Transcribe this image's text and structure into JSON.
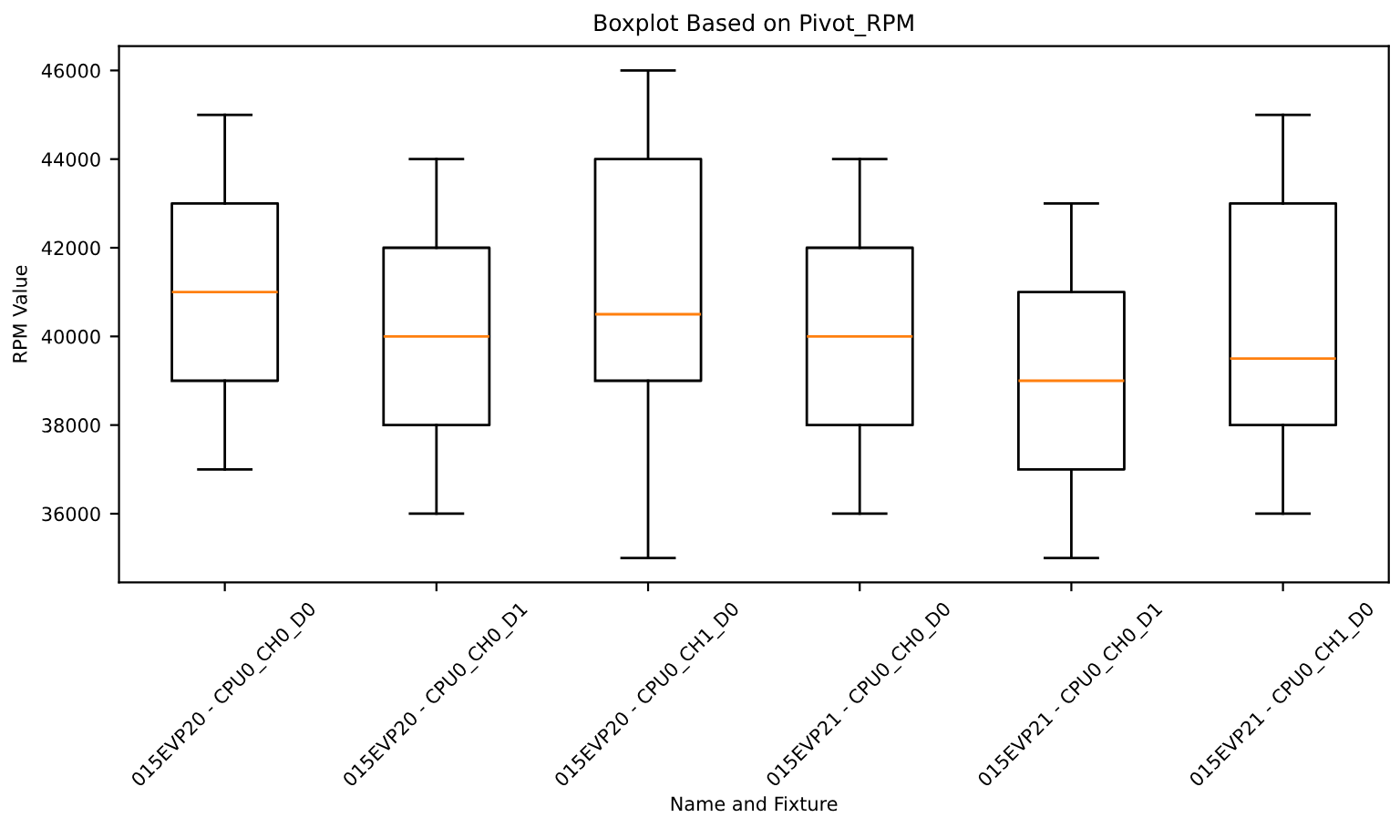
{
  "chart_data": {
    "type": "box",
    "title": "Boxplot Based on Pivot_RPM",
    "xlabel": "Name and Fixture",
    "ylabel": "RPM Value",
    "categories": [
      "015EVP20 - CPU0_CH0_D0",
      "015EVP20 - CPU0_CH0_D1",
      "015EVP20 - CPU0_CH1_D0",
      "015EVP21 - CPU0_CH0_D0",
      "015EVP21 - CPU0_CH0_D1",
      "015EVP21 - CPU0_CH1_D0"
    ],
    "boxes": [
      {
        "low": 37000,
        "q1": 39000,
        "median": 41000,
        "q3": 43000,
        "high": 45000
      },
      {
        "low": 36000,
        "q1": 38000,
        "median": 40000,
        "q3": 42000,
        "high": 44000
      },
      {
        "low": 35000,
        "q1": 39000,
        "median": 40500,
        "q3": 44000,
        "high": 46000
      },
      {
        "low": 36000,
        "q1": 38000,
        "median": 40000,
        "q3": 42000,
        "high": 44000
      },
      {
        "low": 35000,
        "q1": 37000,
        "median": 39000,
        "q3": 41000,
        "high": 43000
      },
      {
        "low": 36000,
        "q1": 38000,
        "median": 39500,
        "q3": 43000,
        "high": 45000
      }
    ],
    "color": "#000000",
    "ylim": [
      34450,
      46550
    ],
    "yticks": [
      36000,
      38000,
      40000,
      42000,
      44000,
      46000
    ],
    "grid": false
  }
}
